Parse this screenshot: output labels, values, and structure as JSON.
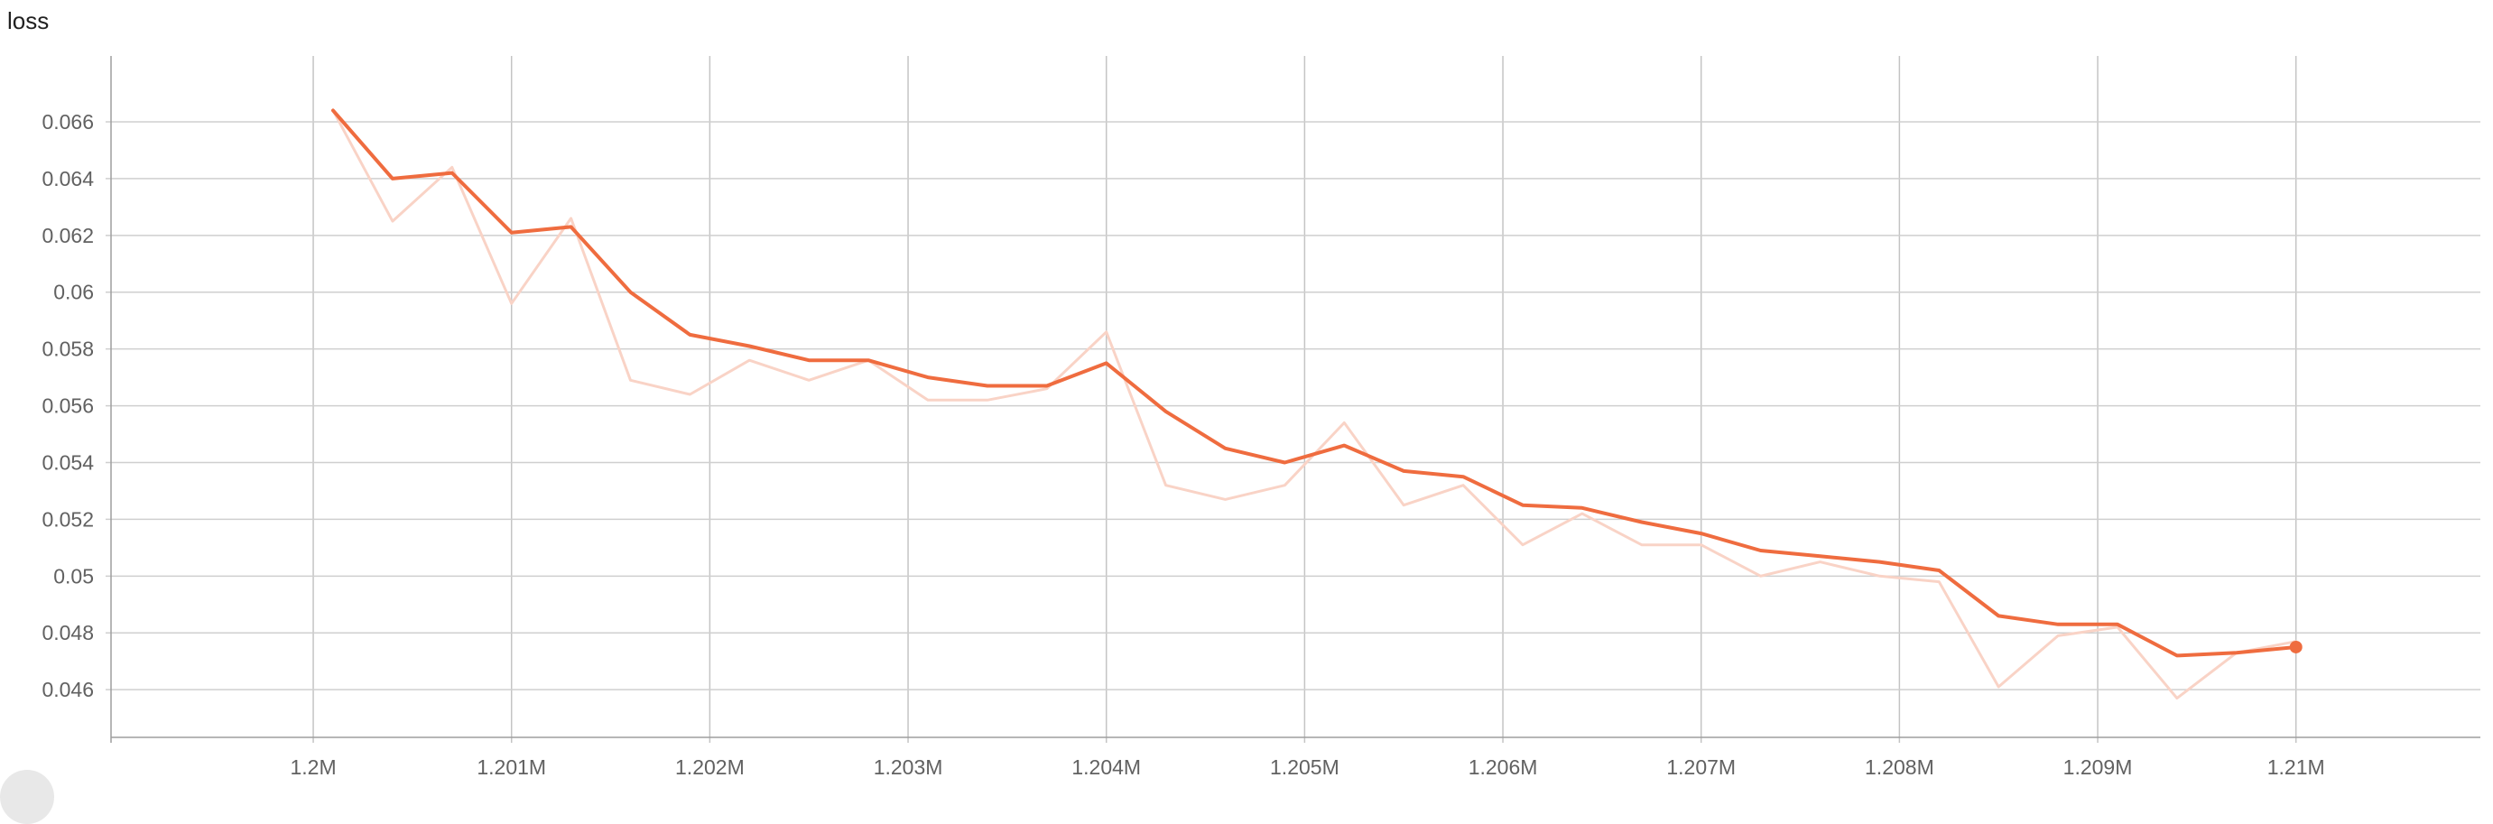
{
  "chart_data": {
    "type": "line",
    "title": "loss",
    "xlabel": "",
    "ylabel": "",
    "xlim": [
      1198980,
      1210930
    ],
    "ylim": [
      0.04432,
      0.06832
    ],
    "grid": true,
    "x_ticks": [
      1200000,
      1201000,
      1202000,
      1203000,
      1204000,
      1205000,
      1206000,
      1207000,
      1208000,
      1209000,
      1210000
    ],
    "x_tick_labels": [
      "1.2M",
      "1.201M",
      "1.202M",
      "1.203M",
      "1.204M",
      "1.205M",
      "1.206M",
      "1.207M",
      "1.208M",
      "1.209M",
      "1.21M"
    ],
    "y_ticks": [
      0.046,
      0.048,
      0.05,
      0.052,
      0.054,
      0.056,
      0.058,
      0.06,
      0.062,
      0.064,
      0.066
    ],
    "y_tick_labels": [
      "0.046",
      "0.048",
      "0.05",
      "0.052",
      "0.054",
      "0.056",
      "0.058",
      "0.06",
      "0.062",
      "0.064",
      "0.066"
    ],
    "x": [
      1200100,
      1200400,
      1200700,
      1201000,
      1201300,
      1201600,
      1201900,
      1202200,
      1202500,
      1202800,
      1203100,
      1203400,
      1203700,
      1204000,
      1204300,
      1204600,
      1204900,
      1205200,
      1205500,
      1205800,
      1206100,
      1206400,
      1206700,
      1207000,
      1207300,
      1207600,
      1207900,
      1208200,
      1208500,
      1208800,
      1209100,
      1209400,
      1209700,
      1210000
    ],
    "series": [
      {
        "role": "raw",
        "color": "#f9d3c6",
        "values": [
          0.0664,
          0.0625,
          0.0644,
          0.0596,
          0.0626,
          0.0569,
          0.0564,
          0.0576,
          0.0569,
          0.0576,
          0.0562,
          0.0562,
          0.0566,
          0.0586,
          0.0532,
          0.0527,
          0.0532,
          0.0554,
          0.0525,
          0.0532,
          0.0511,
          0.0522,
          0.0511,
          0.0511,
          0.05,
          0.0505,
          0.05,
          0.0498,
          0.0461,
          0.0479,
          0.0482,
          0.0457,
          0.0473,
          0.0477
        ]
      },
      {
        "role": "smoothed",
        "color": "#ef6c3f",
        "values": [
          0.0664,
          0.064,
          0.0642,
          0.0621,
          0.0623,
          0.06,
          0.0585,
          0.0581,
          0.0576,
          0.0576,
          0.057,
          0.0567,
          0.0567,
          0.0575,
          0.0558,
          0.0545,
          0.054,
          0.0546,
          0.0537,
          0.0535,
          0.0525,
          0.0524,
          0.0519,
          0.0515,
          0.0509,
          0.0507,
          0.0505,
          0.0502,
          0.0486,
          0.0483,
          0.0483,
          0.0472,
          0.0473,
          0.0475
        ]
      }
    ]
  }
}
